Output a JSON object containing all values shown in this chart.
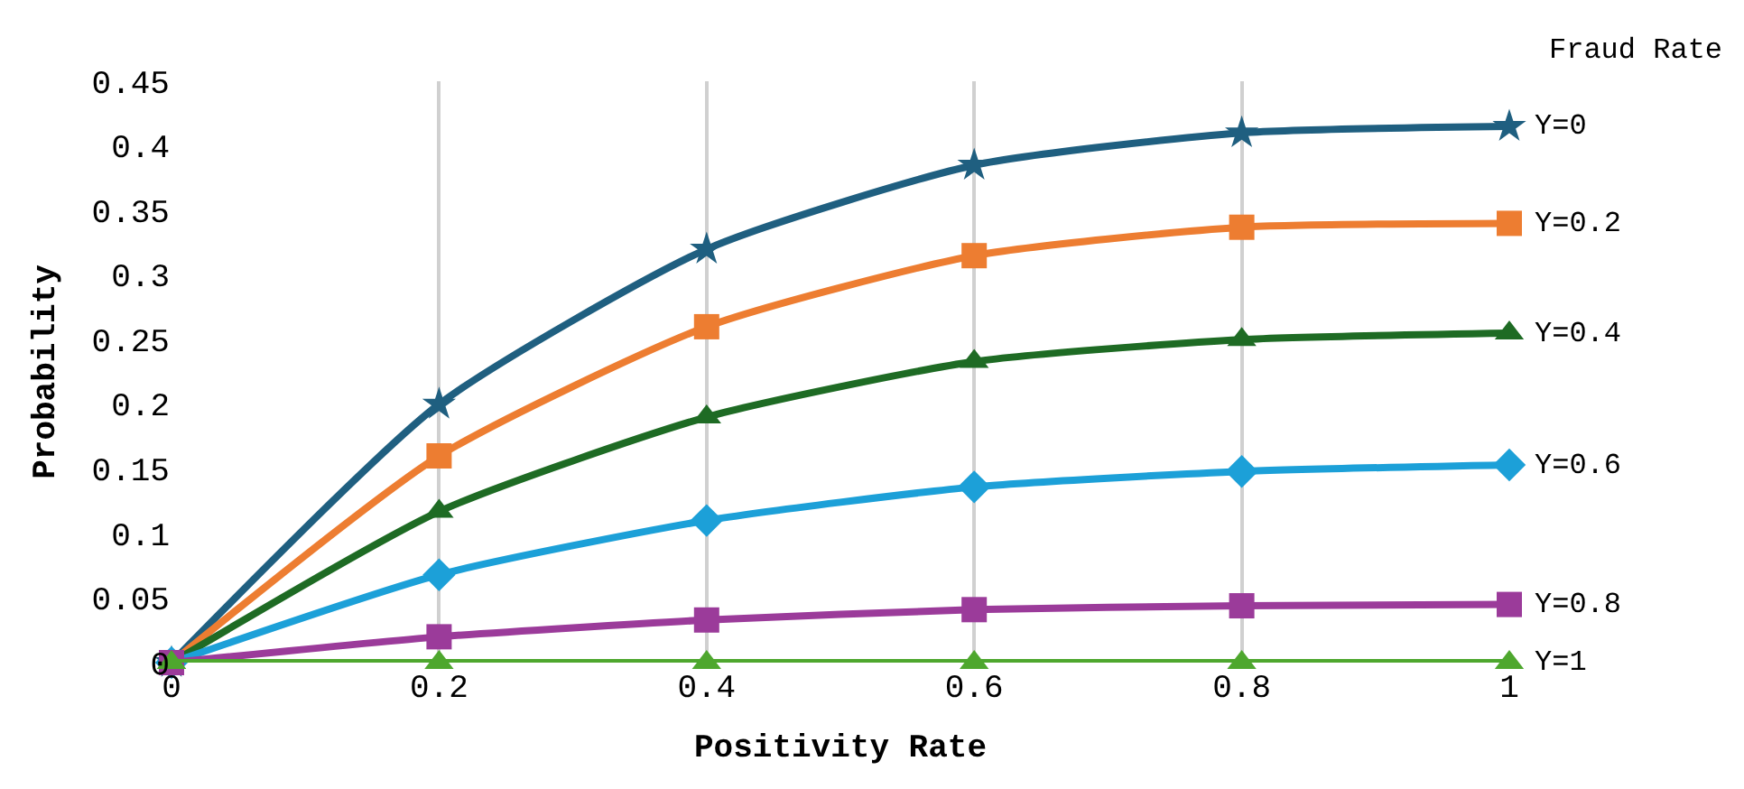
{
  "chart_data": {
    "type": "line",
    "xlabel": "Positivity Rate",
    "ylabel": "Probability",
    "legend_title": "Fraud Rate",
    "x": [
      0,
      0.2,
      0.4,
      0.6,
      0.8,
      1
    ],
    "xlim": [
      0,
      1
    ],
    "xticks": [
      {
        "value": 0,
        "label": "0"
      },
      {
        "value": 0.2,
        "label": "0.2"
      },
      {
        "value": 0.4,
        "label": "0.4"
      },
      {
        "value": 0.6,
        "label": "0.6"
      },
      {
        "value": 0.8,
        "label": "0.8"
      },
      {
        "value": 1,
        "label": "1"
      }
    ],
    "ylim": [
      0,
      0.45
    ],
    "yticks": [
      {
        "value": 0,
        "label": "0"
      },
      {
        "value": 0.05,
        "label": "0.05"
      },
      {
        "value": 0.1,
        "label": "0.1"
      },
      {
        "value": 0.15,
        "label": "0.15"
      },
      {
        "value": 0.2,
        "label": "0.2"
      },
      {
        "value": 0.25,
        "label": "0.25"
      },
      {
        "value": 0.3,
        "label": "0.3"
      },
      {
        "value": 0.35,
        "label": "0.35"
      },
      {
        "value": 0.4,
        "label": "0.4"
      },
      {
        "value": 0.45,
        "label": "0.45"
      }
    ],
    "grid": "x",
    "legend": false,
    "line_style": "solid",
    "series": [
      {
        "name": "Y=0",
        "color": "#1f5f80",
        "marker": "star",
        "values": [
          0,
          0.2,
          0.32,
          0.385,
          0.41,
          0.415
        ]
      },
      {
        "name": "Y=0.2",
        "color": "#ed7d31",
        "marker": "square",
        "values": [
          0,
          0.16,
          0.26,
          0.315,
          0.337,
          0.34
        ]
      },
      {
        "name": "Y=0.4",
        "color": "#1e6b24",
        "marker": "triangle",
        "values": [
          0,
          0.117,
          0.19,
          0.233,
          0.25,
          0.255
        ]
      },
      {
        "name": "Y=0.6",
        "color": "#1ca0d8",
        "marker": "diamond",
        "values": [
          0,
          0.068,
          0.11,
          0.136,
          0.148,
          0.153
        ]
      },
      {
        "name": "Y=0.8",
        "color": "#9b3b9a",
        "marker": "square",
        "values": [
          0,
          0.02,
          0.033,
          0.041,
          0.044,
          0.045
        ]
      },
      {
        "name": "Y=1",
        "color": "#4ea72e",
        "marker": "triangle",
        "values": [
          0,
          0,
          0,
          0,
          0,
          0
        ]
      }
    ]
  }
}
